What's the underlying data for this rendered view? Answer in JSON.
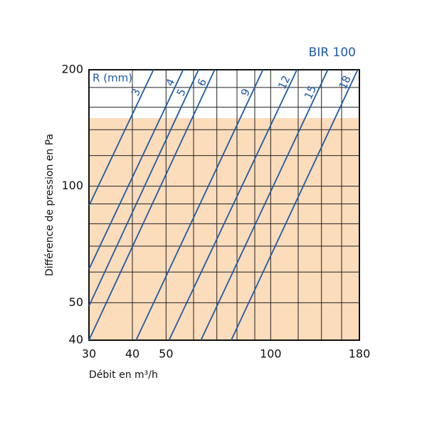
{
  "chart_data": {
    "type": "line",
    "title": "BIR 100",
    "legend_title": "R (mm)",
    "x_label": "Débit en m³/h",
    "y_label": "Différence de pression en Pa",
    "log_x": true,
    "log_y": true,
    "xlim": [
      30,
      180
    ],
    "ylim": [
      40,
      200
    ],
    "xticks": [
      30,
      40,
      50,
      100,
      180
    ],
    "yticks": [
      40,
      50,
      100,
      200
    ],
    "xgrid": [
      30,
      40,
      50,
      60,
      70,
      80,
      90,
      100,
      120,
      140,
      160,
      180
    ],
    "ygrid": [
      40,
      50,
      60,
      70,
      80,
      90,
      100,
      120,
      140,
      160,
      180,
      200
    ],
    "shaded_ylim": [
      40,
      150
    ],
    "shade_color": "#fbdcbb",
    "line_color": "#1f5aa6",
    "series": [
      {
        "name": "3",
        "x": [
          30,
          46
        ],
        "values": [
          89,
          200
        ]
      },
      {
        "name": "4",
        "x": [
          30,
          56
        ],
        "values": [
          61,
          200
        ]
      },
      {
        "name": "5",
        "x": [
          30,
          62
        ],
        "values": [
          49,
          200
        ]
      },
      {
        "name": "6",
        "x": [
          30,
          69
        ],
        "values": [
          40,
          200
        ]
      },
      {
        "name": "9",
        "x": [
          41,
          95
        ],
        "values": [
          40,
          200
        ]
      },
      {
        "name": "12",
        "x": [
          51,
          119
        ],
        "values": [
          40,
          200
        ]
      },
      {
        "name": "15",
        "x": [
          63,
          146
        ],
        "values": [
          40,
          200
        ]
      },
      {
        "name": "18",
        "x": [
          77,
          178
        ],
        "values": [
          40,
          200
        ]
      }
    ]
  }
}
